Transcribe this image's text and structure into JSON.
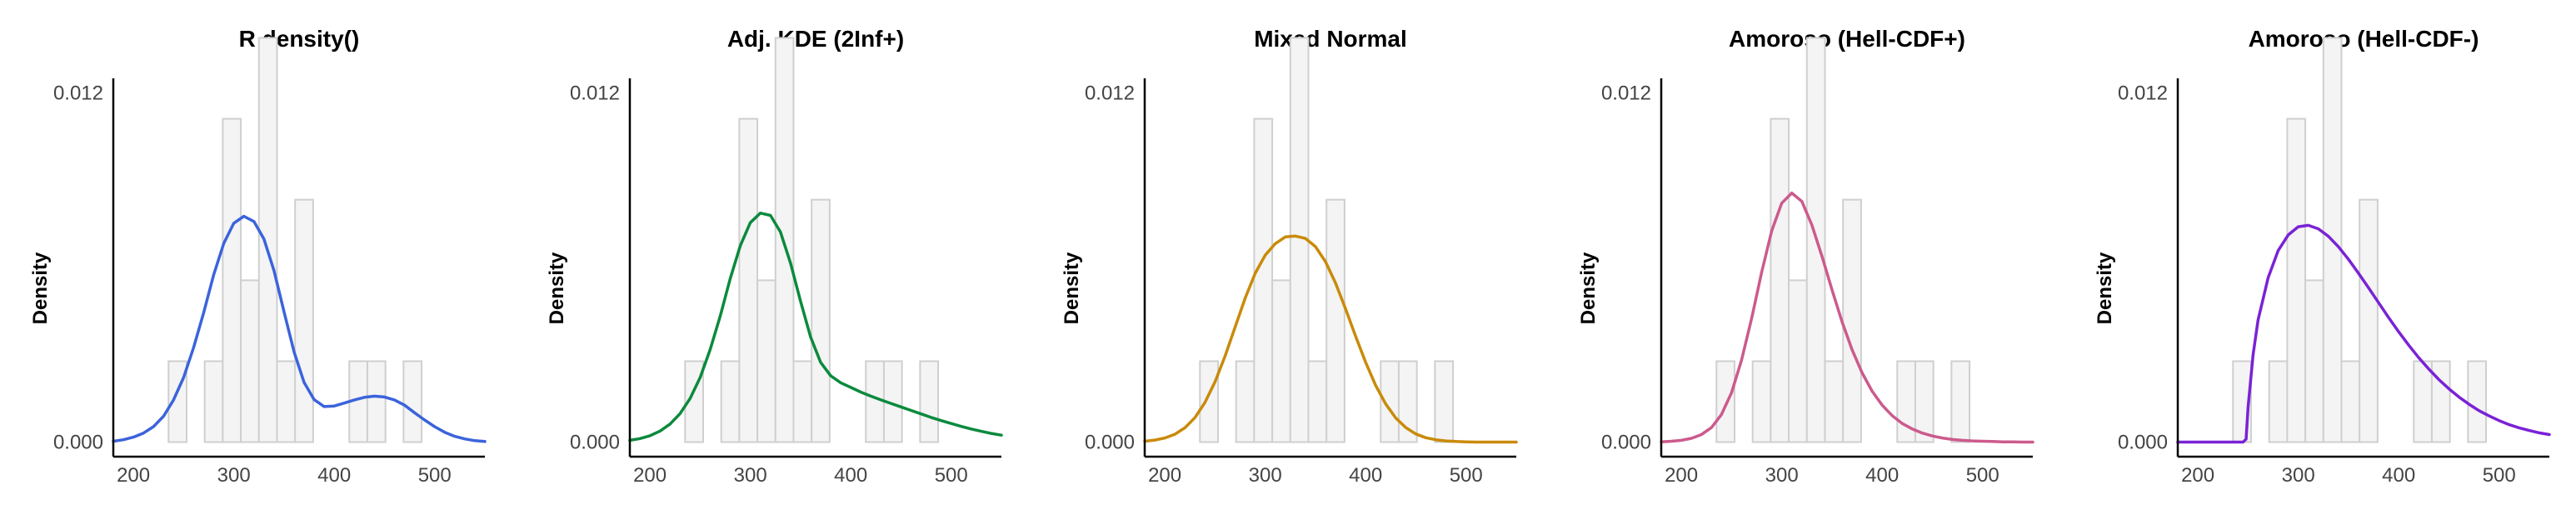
{
  "chart_data": {
    "shared": {
      "histogram": {
        "bin_edges": [
          235,
          253,
          271,
          289,
          307,
          325,
          343,
          361,
          379,
          397,
          415,
          433,
          451,
          469,
          487
        ],
        "densities": [
          0.00278,
          0,
          0.00278,
          0.01111,
          0.00556,
          0.01389,
          0.00278,
          0.00833,
          0,
          0,
          0.00278,
          0.00278,
          0,
          0.00278
        ]
      },
      "xlim": [
        180,
        550
      ],
      "ylim": [
        -0.0005,
        0.0125
      ],
      "xticks": [
        200,
        300,
        400,
        500
      ],
      "yticks": [
        0.0,
        0.012
      ],
      "ytick_labels": [
        "0.000",
        "0.012"
      ]
    },
    "panels": [
      {
        "title": "R density()",
        "ylabel": "Density",
        "type": "line",
        "color": "#3b63db",
        "x": [
          180,
          190,
          200,
          210,
          220,
          230,
          240,
          250,
          260,
          270,
          280,
          290,
          300,
          310,
          320,
          330,
          340,
          350,
          360,
          370,
          380,
          390,
          400,
          410,
          420,
          430,
          440,
          450,
          460,
          470,
          480,
          490,
          500,
          510,
          520,
          530,
          540,
          550
        ],
        "y": [
          3e-05,
          8e-05,
          0.00017,
          0.00031,
          0.00053,
          0.00089,
          0.00145,
          0.00222,
          0.00325,
          0.00445,
          0.00575,
          0.00683,
          0.00752,
          0.00776,
          0.00758,
          0.00698,
          0.00589,
          0.00448,
          0.0031,
          0.00205,
          0.00146,
          0.00122,
          0.00124,
          0.00134,
          0.00145,
          0.00154,
          0.00158,
          0.00155,
          0.00145,
          0.00127,
          0.00101,
          0.00076,
          0.00053,
          0.00034,
          0.0002,
          0.00011,
          5e-05,
          2e-05
        ]
      },
      {
        "title": "Adj. KDE (2Inf+)",
        "ylabel": "Density",
        "type": "line",
        "color": "#0b8a3d",
        "x": [
          180,
          190,
          200,
          210,
          220,
          230,
          240,
          250,
          260,
          270,
          280,
          290,
          300,
          310,
          320,
          330,
          340,
          350,
          360,
          370,
          380,
          390,
          400,
          410,
          420,
          430,
          440,
          450,
          460,
          470,
          480,
          490,
          500,
          510,
          520,
          530,
          540,
          550
        ],
        "y": [
          6e-05,
          0.00012,
          0.00022,
          0.00038,
          0.00062,
          0.00098,
          0.0015,
          0.00222,
          0.00318,
          0.00433,
          0.00562,
          0.00675,
          0.00754,
          0.00787,
          0.00779,
          0.00722,
          0.00615,
          0.00484,
          0.00361,
          0.00274,
          0.00228,
          0.00204,
          0.00188,
          0.00172,
          0.00158,
          0.00145,
          0.00133,
          0.00121,
          0.00109,
          0.00097,
          0.00085,
          0.00074,
          0.00064,
          0.00054,
          0.00045,
          0.00037,
          0.0003,
          0.00024
        ]
      },
      {
        "title": "Mixed Normal",
        "ylabel": "Density",
        "type": "line",
        "color": "#c98a0a",
        "x": [
          180,
          190,
          200,
          210,
          220,
          230,
          240,
          250,
          260,
          270,
          280,
          290,
          300,
          310,
          320,
          330,
          340,
          350,
          360,
          370,
          380,
          390,
          400,
          410,
          420,
          430,
          440,
          450,
          460,
          470,
          480,
          490,
          500,
          510,
          520,
          530,
          540,
          550
        ],
        "y": [
          3e-05,
          7e-05,
          0.00014,
          0.00027,
          0.00049,
          0.00084,
          0.00136,
          0.00207,
          0.00295,
          0.00395,
          0.00494,
          0.0058,
          0.00642,
          0.00682,
          0.00705,
          0.00708,
          0.007,
          0.00672,
          0.0062,
          0.00547,
          0.00458,
          0.00364,
          0.00274,
          0.00195,
          0.00131,
          0.00083,
          0.0005,
          0.00028,
          0.00015,
          8e-05,
          4e-05,
          2e-05,
          1e-05,
          0.0,
          0.0,
          0.0,
          0.0,
          0.0
        ]
      },
      {
        "title": "Amoroso (Hell-CDF+)",
        "ylabel": "Density",
        "type": "line",
        "color": "#cc5a8d",
        "x": [
          180,
          190,
          200,
          210,
          220,
          230,
          240,
          250,
          260,
          270,
          280,
          290,
          300,
          310,
          320,
          330,
          340,
          350,
          360,
          370,
          380,
          390,
          400,
          410,
          420,
          430,
          440,
          450,
          460,
          470,
          480,
          490,
          500,
          510,
          520,
          530,
          540,
          550
        ],
        "y": [
          1e-05,
          3e-05,
          6e-05,
          0.00013,
          0.00026,
          0.0005,
          0.00095,
          0.0017,
          0.00282,
          0.00425,
          0.00583,
          0.00726,
          0.00821,
          0.00856,
          0.00827,
          0.00746,
          0.00639,
          0.00524,
          0.00414,
          0.00318,
          0.00238,
          0.00175,
          0.00127,
          0.00091,
          0.00064,
          0.00045,
          0.00031,
          0.00021,
          0.00014,
          9e-05,
          6e-05,
          4e-05,
          3e-05,
          2e-05,
          1e-05,
          1e-05,
          0.0,
          0.0
        ]
      },
      {
        "title": "Amoroso (Hell-CDF-)",
        "ylabel": "Density",
        "type": "line",
        "color": "#7a22d6",
        "x": [
          180,
          190,
          200,
          210,
          220,
          230,
          240,
          245,
          248,
          250,
          255,
          260,
          270,
          280,
          290,
          300,
          310,
          320,
          330,
          340,
          350,
          360,
          370,
          380,
          390,
          400,
          410,
          420,
          430,
          440,
          450,
          460,
          470,
          480,
          490,
          500,
          510,
          520,
          530,
          540,
          550
        ],
        "y": [
          0,
          0,
          0,
          0,
          0,
          0,
          0,
          0,
          0.0001,
          0.0012,
          0.003,
          0.0042,
          0.00565,
          0.00658,
          0.00712,
          0.0074,
          0.00745,
          0.00733,
          0.00707,
          0.00671,
          0.00628,
          0.0058,
          0.0053,
          0.00479,
          0.00428,
          0.00379,
          0.00333,
          0.0029,
          0.00251,
          0.00215,
          0.00183,
          0.00155,
          0.0013,
          0.00108,
          0.0009,
          0.00074,
          0.0006,
          0.00049,
          0.0004,
          0.00032,
          0.00026
        ]
      }
    ]
  }
}
